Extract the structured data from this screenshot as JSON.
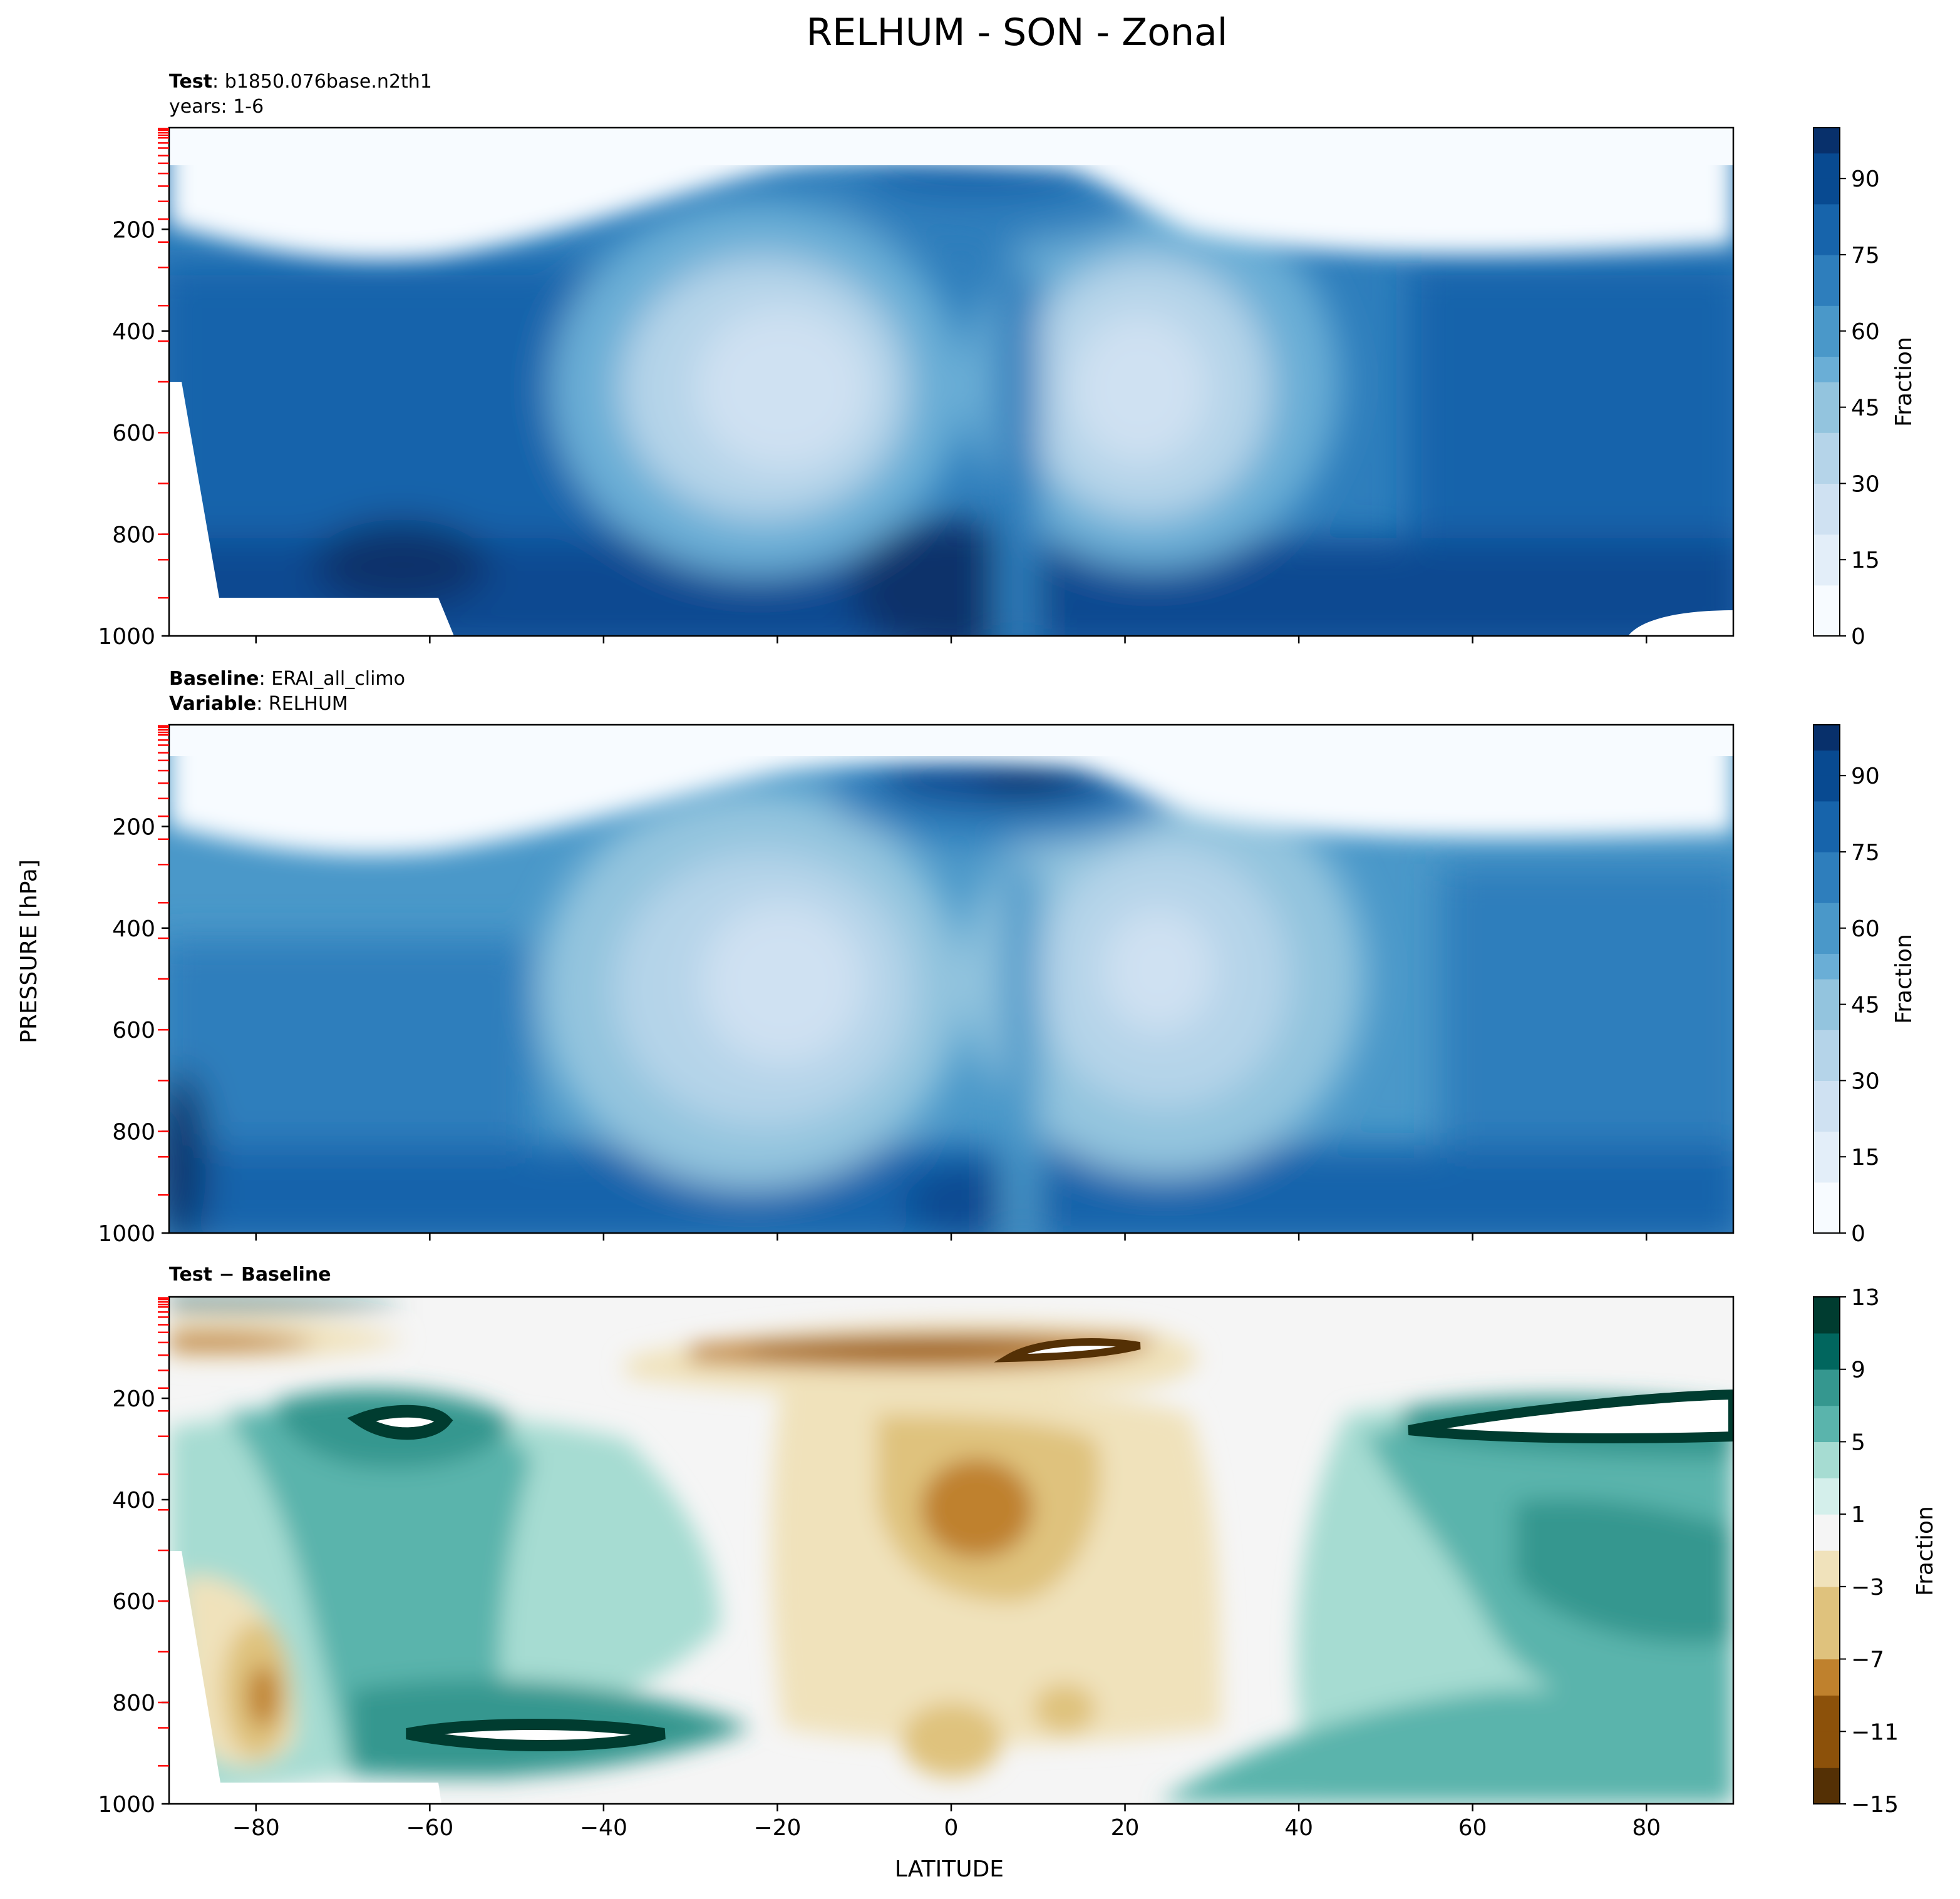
{
  "title": "RELHUM - SON - Zonal",
  "shared_ylabel": "PRESSURE [hPa]",
  "shared_xlabel": "LATITUDE",
  "panels": [
    {
      "label_lines": [
        {
          "bold": "Test",
          "sep": ": ",
          "text": "b1850.076base.n2th1"
        },
        {
          "bold": "",
          "sep": "",
          "text": "years: 1-6"
        }
      ],
      "colorbar_label": "Fraction",
      "colorbar_ticks": [
        "0",
        "15",
        "30",
        "45",
        "60",
        "75",
        "90"
      ]
    },
    {
      "label_lines": [
        {
          "bold": "Baseline",
          "sep": ": ",
          "text": "ERAI_all_climo"
        },
        {
          "bold": "Variable",
          "sep": ": ",
          "text": "RELHUM"
        }
      ],
      "colorbar_label": "Fraction",
      "colorbar_ticks": [
        "0",
        "15",
        "30",
        "45",
        "60",
        "75",
        "90"
      ]
    },
    {
      "label_lines": [
        {
          "bold": "Test − Baseline",
          "sep": "",
          "text": ""
        }
      ],
      "colorbar_label": "Fraction",
      "colorbar_ticks": [
        "−15",
        "−11",
        "−7",
        "−3",
        "1",
        "5",
        "9",
        "13"
      ]
    }
  ],
  "colors": {
    "blues": [
      "#f7fbff",
      "#e3eef9",
      "#cfe1f2",
      "#b5d4e9",
      "#93c4de",
      "#6aaed6",
      "#4a98c9",
      "#2e7ebc",
      "#1764ab",
      "#084a91",
      "#08306b"
    ],
    "brbg_brown": [
      "#543005",
      "#8c510a",
      "#bf812d",
      "#dfc27d",
      "#f0e2bb"
    ],
    "brbg_neutral": "#f5f5f5",
    "brbg_green": [
      "#d4efeb",
      "#a6dcd2",
      "#5ab4ac",
      "#35978f",
      "#01665e",
      "#003c30"
    ],
    "model_level_tick": "#ff0000"
  },
  "chart_data": [
    {
      "type": "contourf",
      "panel": "Test",
      "x_ticks": [
        -80,
        -60,
        -40,
        -20,
        0,
        20,
        40,
        60,
        80
      ],
      "xlim": [
        -90,
        90
      ],
      "y_ticks": [
        200,
        400,
        600,
        800,
        1000
      ],
      "ylim": [
        1000,
        0
      ],
      "y_inverted": true,
      "colorbar_range": [
        0,
        100
      ],
      "colorbar_levels_step": 5,
      "features": [
        {
          "name": "dry stratosphere",
          "value": 2
        },
        {
          "name": "subtropical minimum south",
          "lat": -20,
          "pressure": 480,
          "value": 22
        },
        {
          "name": "subtropical minimum north",
          "lat": 23,
          "pressure": 460,
          "value": 28
        },
        {
          "name": "tropical tropopause maximum",
          "lat": 5,
          "pressure": 110,
          "value": 72
        },
        {
          "name": "boundary layer maximum",
          "lat": 0,
          "pressure": 930,
          "value": 88
        },
        {
          "name": "arctic lower troposphere",
          "lat": 85,
          "pressure": 950,
          "value": 95
        }
      ]
    },
    {
      "type": "contourf",
      "panel": "Baseline",
      "x_ticks": [
        -80,
        -60,
        -40,
        -20,
        0,
        20,
        40,
        60,
        80
      ],
      "xlim": [
        -90,
        90
      ],
      "y_ticks": [
        200,
        400,
        600,
        800,
        1000
      ],
      "ylim": [
        1000,
        0
      ],
      "y_inverted": true,
      "colorbar_range": [
        0,
        100
      ],
      "colorbar_levels_step": 5,
      "features": [
        {
          "name": "dry stratosphere",
          "value": 2
        },
        {
          "name": "subtropical minimum south",
          "lat": -20,
          "pressure": 480,
          "value": 18
        },
        {
          "name": "subtropical minimum north",
          "lat": 23,
          "pressure": 460,
          "value": 22
        },
        {
          "name": "tropical tropopause maximum",
          "lat": 8,
          "pressure": 110,
          "value": 92
        },
        {
          "name": "boundary layer maximum",
          "lat": 0,
          "pressure": 950,
          "value": 85
        }
      ]
    },
    {
      "type": "contourf",
      "panel": "Test − Baseline",
      "x_ticks": [
        -80,
        -60,
        -40,
        -20,
        0,
        20,
        40,
        60,
        80
      ],
      "xlim": [
        -90,
        90
      ],
      "y_ticks": [
        200,
        400,
        600,
        800,
        1000
      ],
      "ylim": [
        1000,
        0
      ],
      "y_inverted": true,
      "colorbar_range": [
        -15,
        13
      ],
      "colorbar_levels": [
        -15,
        -13,
        -11,
        -9,
        -7,
        -5,
        -3,
        -1,
        1,
        3,
        5,
        7,
        9,
        11,
        13
      ],
      "features": [
        {
          "name": "negative tropopause anomaly",
          "lat": 0,
          "pressure": 110,
          "value": -14
        },
        {
          "name": "negative mid-troposphere anomaly",
          "lat": 0,
          "pressure": 400,
          "value": -8
        },
        {
          "name": "southern upper positive anomaly",
          "lat": -63,
          "pressure": 230,
          "value": 15
        },
        {
          "name": "southern lower positive anomaly",
          "lat": -45,
          "pressure": 820,
          "value": 15
        },
        {
          "name": "northern upper positive anomaly",
          "lat": 75,
          "pressure": 240,
          "value": 15
        },
        {
          "name": "northern mid positive anomaly",
          "lat": 78,
          "pressure": 500,
          "value": 11
        },
        {
          "name": "antarctic low-level negative anomaly",
          "lat": -80,
          "pressure": 820,
          "value": -10
        }
      ]
    }
  ]
}
